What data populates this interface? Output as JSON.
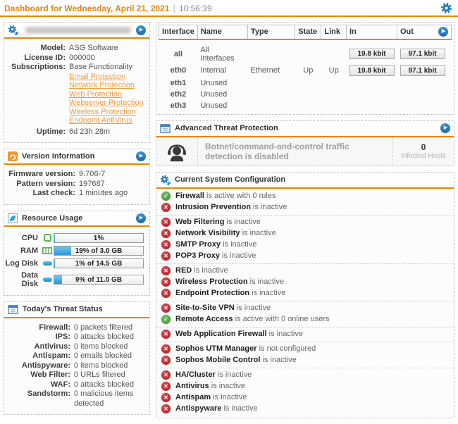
{
  "colors": {
    "accent_orange": "#ee8400",
    "link_orange": "#f49c3c",
    "blue": "#1c76bd",
    "ok_green": "#4aa446",
    "error_red": "#c5262c",
    "up_green": "#2f9e44"
  },
  "header": {
    "title": "Dashboard for Wednesday, April 21, 2021",
    "separator": "|",
    "time": "10:56:39"
  },
  "system_panel": {
    "rows": [
      {
        "label": "Model:",
        "value": "ASG Software"
      },
      {
        "label": "License ID:",
        "value": "000000"
      },
      {
        "label": "Subscriptions:",
        "value": "Base Functionality"
      }
    ],
    "links": [
      "Email Protection",
      "Network Protection",
      "Web Protection",
      "Webserver Protection",
      "Wireless Protection",
      "Endpoint AntiVirus"
    ],
    "uptime_label": "Uptime:",
    "uptime_value": "6d 23h 28m"
  },
  "version_panel": {
    "title": "Version Information",
    "rows": [
      {
        "label": "Firmware version:",
        "value": "9.706-7"
      },
      {
        "label": "Pattern version:",
        "value": "197687"
      },
      {
        "label": "Last check:",
        "value": "1 minutes ago"
      }
    ]
  },
  "resource_panel": {
    "title": "Resource Usage",
    "rows": [
      {
        "label": "CPU",
        "percent": 1,
        "text": "1%"
      },
      {
        "label": "RAM",
        "percent": 19,
        "text": "19% of 3.0 GB"
      },
      {
        "label": "Log Disk",
        "percent": 1,
        "text": "1% of 14.5 GB"
      },
      {
        "label": "Data Disk",
        "percent": 9,
        "text": "9% of 11.0 GB"
      }
    ]
  },
  "threat_panel": {
    "title": "Today's Threat Status",
    "rows": [
      {
        "label": "Firewall:",
        "value": "0 packets filtered"
      },
      {
        "label": "IPS:",
        "value": "0 attacks blocked"
      },
      {
        "label": "Antivirus:",
        "value": "0 items blocked"
      },
      {
        "label": "Antispam:",
        "value": "0 emails blocked"
      },
      {
        "label": "Antispyware:",
        "value": "0 items blocked"
      },
      {
        "label": "Web Filter:",
        "value": "0 URLs filtered"
      },
      {
        "label": "WAF:",
        "value": "0 attacks blocked"
      },
      {
        "label": "Sandstorm:",
        "value": "0 malicious items detected"
      }
    ]
  },
  "interface_panel": {
    "headers": [
      "Interface",
      "Name",
      "Type",
      "State",
      "Link",
      "In",
      "Out"
    ],
    "rows": [
      {
        "interface": "all",
        "name": "All Interfaces",
        "type": "",
        "state": "",
        "link": "",
        "in": "19.8 kbit",
        "out": "97.1 kbit"
      },
      {
        "interface": "eth0",
        "name": "Internal",
        "type": "Ethernet",
        "state": "Up",
        "link": "Up",
        "in": "19.8 kbit",
        "out": "97.1 kbit"
      },
      {
        "interface": "eth1",
        "name": "Unused",
        "type": "",
        "state": "",
        "link": "",
        "in": "",
        "out": ""
      },
      {
        "interface": "eth2",
        "name": "Unused",
        "type": "",
        "state": "",
        "link": "",
        "in": "",
        "out": ""
      },
      {
        "interface": "eth3",
        "name": "Unused",
        "type": "",
        "state": "",
        "link": "",
        "in": "",
        "out": ""
      }
    ]
  },
  "atp_panel": {
    "title": "Advanced Threat Protection",
    "message": "Botnet/command-and-control traffic detection is disabled",
    "count": "0",
    "count_label": "Infected Hosts"
  },
  "config_panel": {
    "title": "Current System Configuration",
    "items": [
      {
        "name": "Firewall",
        "status": "is active with 0 rules",
        "state": "ok"
      },
      {
        "name": "Intrusion Prevention",
        "status": "is inactive",
        "state": "error"
      },
      {
        "name": "Web Filtering",
        "status": "is inactive",
        "state": "error"
      },
      {
        "name": "Network Visibility",
        "status": "is inactive",
        "state": "error"
      },
      {
        "name": "SMTP Proxy",
        "status": "is inactive",
        "state": "error"
      },
      {
        "name": "POP3 Proxy",
        "status": "is inactive",
        "state": "error"
      },
      {
        "name": "RED",
        "status": "is inactive",
        "state": "error"
      },
      {
        "name": "Wireless Protection",
        "status": "is inactive",
        "state": "error"
      },
      {
        "name": "Endpoint Protection",
        "status": "is inactive",
        "state": "error"
      },
      {
        "name": "Site-to-Site VPN",
        "status": "is inactive",
        "state": "error"
      },
      {
        "name": "Remote Access",
        "status": "is active with 0 online users",
        "state": "ok"
      },
      {
        "name": "Web Application Firewall",
        "status": "is inactive",
        "state": "error"
      },
      {
        "name": "Sophos UTM Manager",
        "status": "is not configured",
        "state": "error"
      },
      {
        "name": "Sophos Mobile Control",
        "status": "is inactive",
        "state": "error"
      },
      {
        "name": "HA/Cluster",
        "status": "is inactive",
        "state": "error"
      },
      {
        "name": "Antivirus",
        "status": "is inactive",
        "state": "error"
      },
      {
        "name": "Antispam",
        "status": "is inactive",
        "state": "error"
      },
      {
        "name": "Antispyware",
        "status": "is inactive",
        "state": "error"
      }
    ]
  }
}
